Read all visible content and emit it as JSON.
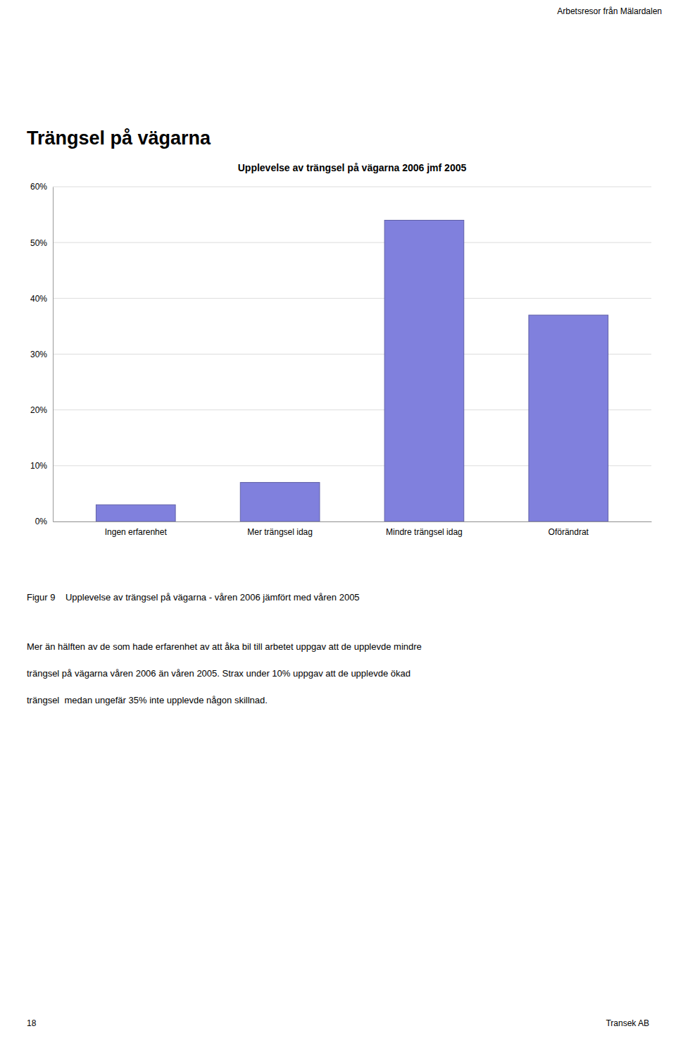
{
  "header": "Arbetsresor från Mälardalen",
  "page_title": "Trängsel på vägarna",
  "figure_caption": "Figur 9    Upplevelse av trängsel på vägarna - våren 2006 jämfört med våren 2005",
  "body_text": [
    "Mer än hälften av de som hade erfarenhet av att åka bil till arbetet uppgav att de upplevde mindre",
    "trängsel på vägarna våren 2006 än våren 2005. Strax under 10% uppgav att de upplevde ökad",
    "trängsel  medan ungefär 35% inte upplevde någon skillnad."
  ],
  "footer_left": "18",
  "footer_right": "Transek AB",
  "chart_data": {
    "type": "bar",
    "title": "Upplevelse av trängsel på vägarna 2006 jmf 2005",
    "categories": [
      "Ingen erfarenhet",
      "Mer trängsel idag",
      "Mindre trängsel idag",
      "Oförändrat"
    ],
    "values": [
      3.0,
      7.0,
      54.0,
      37.0
    ],
    "color": "#8080dd",
    "ylim": [
      0,
      60
    ],
    "yticks": [
      {
        "value": 0,
        "label": "0%"
      },
      {
        "value": 10,
        "label": "10%"
      },
      {
        "value": 20,
        "label": "20%"
      },
      {
        "value": 30,
        "label": "30%"
      },
      {
        "value": 40,
        "label": "40%"
      },
      {
        "value": 50,
        "label": "50%"
      },
      {
        "value": 60,
        "label": "60%"
      }
    ],
    "grid": true
  }
}
